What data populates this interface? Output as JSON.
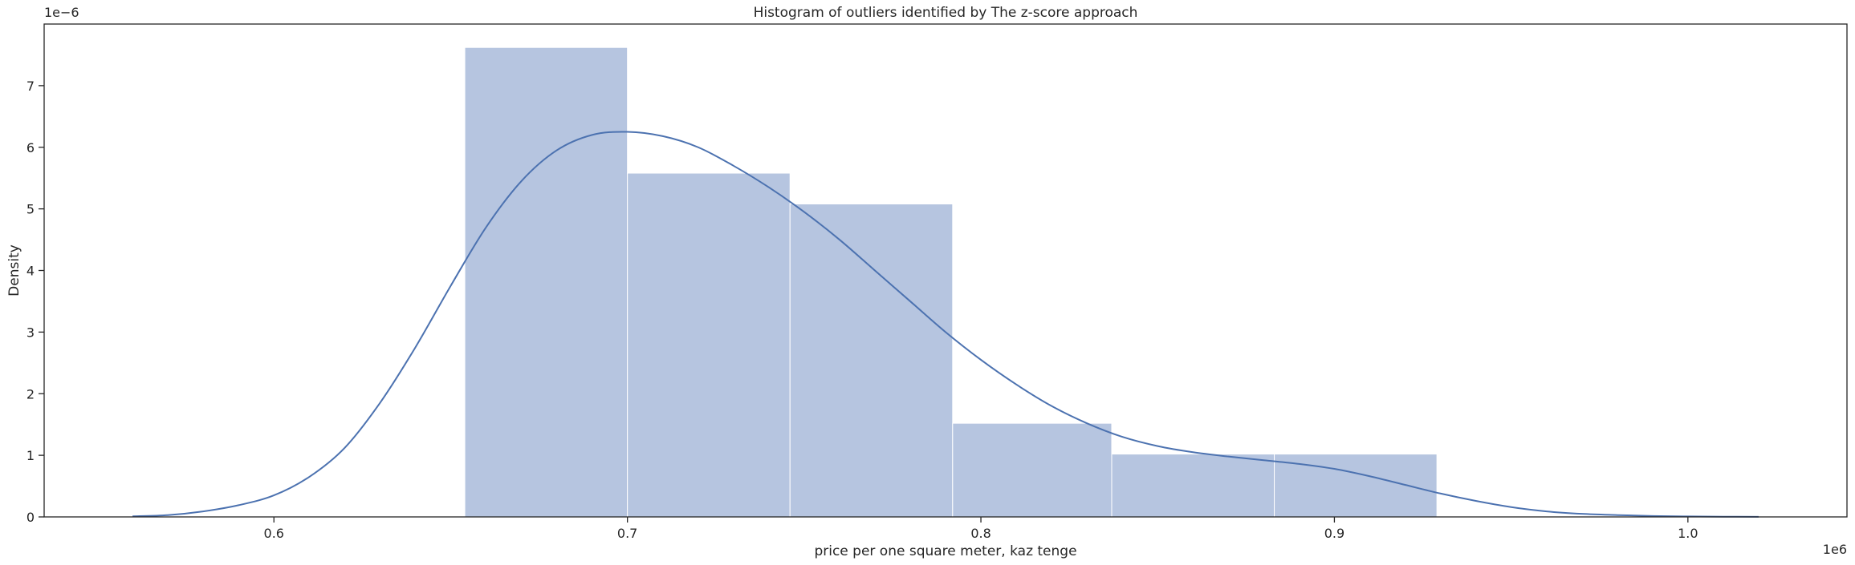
{
  "chart_data": {
    "type": "bar",
    "title": "Histogram of outliers identified by The z-score approach",
    "xlabel": "price per one square meter, kaz tenge",
    "ylabel": "Density",
    "x_scale_label": "1e6",
    "y_scale_label": "1e−6",
    "xlim": [
      0.535,
      1.045
    ],
    "ylim": [
      0,
      8
    ],
    "x_ticks": [
      0.6,
      0.7,
      0.8,
      0.9,
      1.0
    ],
    "x_tick_labels": [
      "0.6",
      "0.7",
      "0.8",
      "0.9",
      "1.0"
    ],
    "y_ticks": [
      0,
      1,
      2,
      3,
      4,
      5,
      6,
      7
    ],
    "y_tick_labels": [
      "0",
      "1",
      "2",
      "3",
      "4",
      "5",
      "6",
      "7"
    ],
    "bins": [
      {
        "x0": 0.654,
        "x1": 0.7,
        "density": 7.62
      },
      {
        "x0": 0.7,
        "x1": 0.746,
        "density": 5.58
      },
      {
        "x0": 0.746,
        "x1": 0.792,
        "density": 5.08
      },
      {
        "x0": 0.792,
        "x1": 0.837,
        "density": 1.52
      },
      {
        "x0": 0.837,
        "x1": 0.883,
        "density": 1.02
      },
      {
        "x0": 0.883,
        "x1": 0.929,
        "density": 1.02
      }
    ],
    "kde": {
      "x": [
        0.56,
        0.57,
        0.58,
        0.59,
        0.6,
        0.61,
        0.62,
        0.63,
        0.64,
        0.65,
        0.66,
        0.67,
        0.68,
        0.69,
        0.7,
        0.71,
        0.72,
        0.73,
        0.74,
        0.75,
        0.76,
        0.77,
        0.78,
        0.79,
        0.8,
        0.81,
        0.82,
        0.83,
        0.84,
        0.85,
        0.86,
        0.87,
        0.88,
        0.89,
        0.9,
        0.91,
        0.92,
        0.93,
        0.94,
        0.95,
        0.96,
        0.97,
        0.98,
        0.99,
        1.0,
        1.01,
        1.02
      ],
      "y": [
        0.01,
        0.03,
        0.09,
        0.19,
        0.35,
        0.65,
        1.12,
        1.85,
        2.75,
        3.75,
        4.7,
        5.45,
        5.95,
        6.2,
        6.25,
        6.18,
        6.0,
        5.7,
        5.35,
        4.95,
        4.5,
        4.0,
        3.5,
        3.0,
        2.55,
        2.15,
        1.8,
        1.52,
        1.3,
        1.15,
        1.05,
        0.98,
        0.92,
        0.86,
        0.78,
        0.66,
        0.52,
        0.38,
        0.26,
        0.16,
        0.09,
        0.05,
        0.03,
        0.015,
        0.008,
        0.004,
        0.002
      ]
    },
    "colors": {
      "bar_fill": "#b6c5e0",
      "bar_edge": "#ffffff",
      "kde_line": "#4c72b0",
      "axis": "#262626"
    },
    "grid": false,
    "legend": "none"
  }
}
